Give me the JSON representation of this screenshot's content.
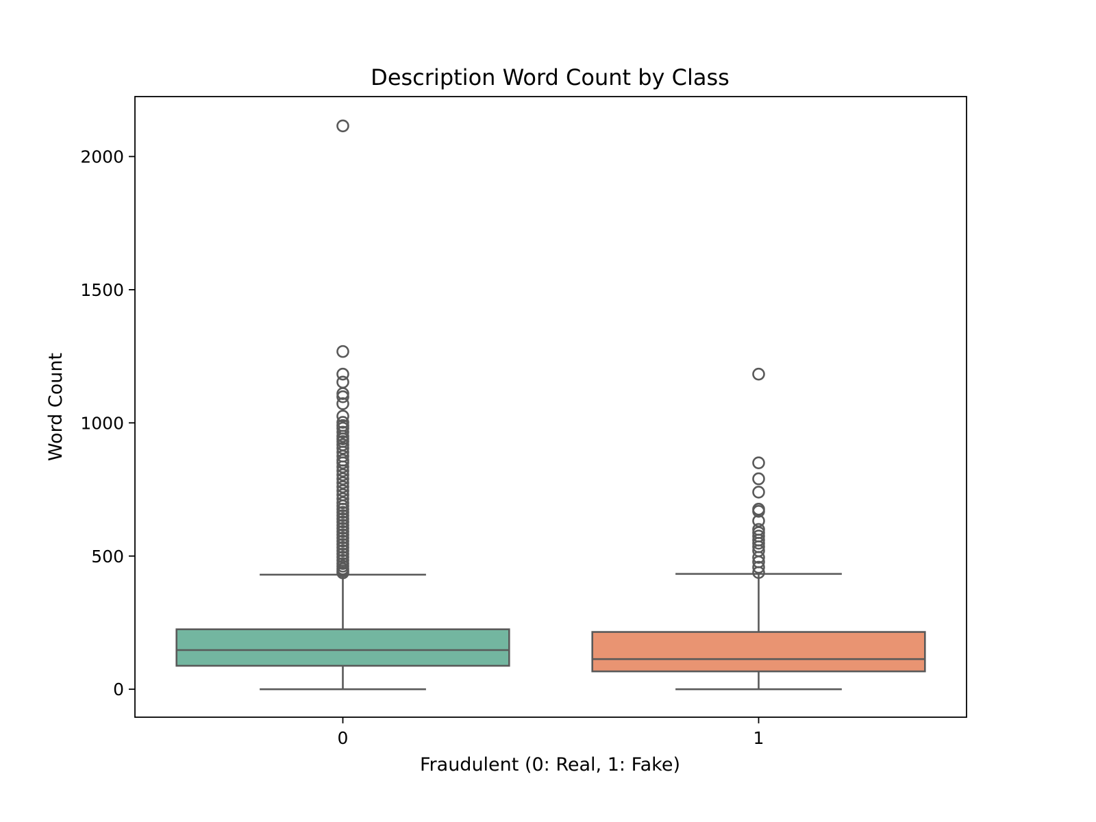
{
  "chart_data": {
    "type": "box",
    "title": "Description Word Count by Class",
    "xlabel": "Fraudulent (0: Real, 1: Fake)",
    "ylabel": "Word Count",
    "ylim": [
      -105,
      2225
    ],
    "yticks": [
      0,
      500,
      1000,
      1500,
      2000
    ],
    "grid": false,
    "categories": [
      "0",
      "1"
    ],
    "series": [
      {
        "category": "0",
        "color": "#73b6a0",
        "whisker_low": 0,
        "q1": 88,
        "median": 147,
        "q3": 225,
        "whisker_high": 430,
        "outliers": [
          2115,
          1268,
          1183,
          1153,
          1110,
          1098,
          1072,
          1025,
          1002,
          990,
          980,
          965,
          950,
          940,
          930,
          918,
          905,
          890,
          875,
          860,
          850,
          835,
          820,
          805,
          790,
          775,
          760,
          745,
          730,
          715,
          700,
          688,
          676,
          664,
          652,
          640,
          628,
          616,
          604,
          592,
          580,
          568,
          556,
          544,
          532,
          520,
          508,
          496,
          484,
          472,
          462,
          452,
          444,
          437
        ]
      },
      {
        "category": "1",
        "color": "#e99472",
        "whisker_low": 0,
        "q1": 67,
        "median": 113,
        "q3": 215,
        "whisker_high": 433,
        "outliers": [
          1183,
          850,
          790,
          740,
          676,
          668,
          632,
          600,
          588,
          575,
          560,
          548,
          535,
          520,
          495,
          478,
          458,
          438
        ]
      }
    ]
  }
}
